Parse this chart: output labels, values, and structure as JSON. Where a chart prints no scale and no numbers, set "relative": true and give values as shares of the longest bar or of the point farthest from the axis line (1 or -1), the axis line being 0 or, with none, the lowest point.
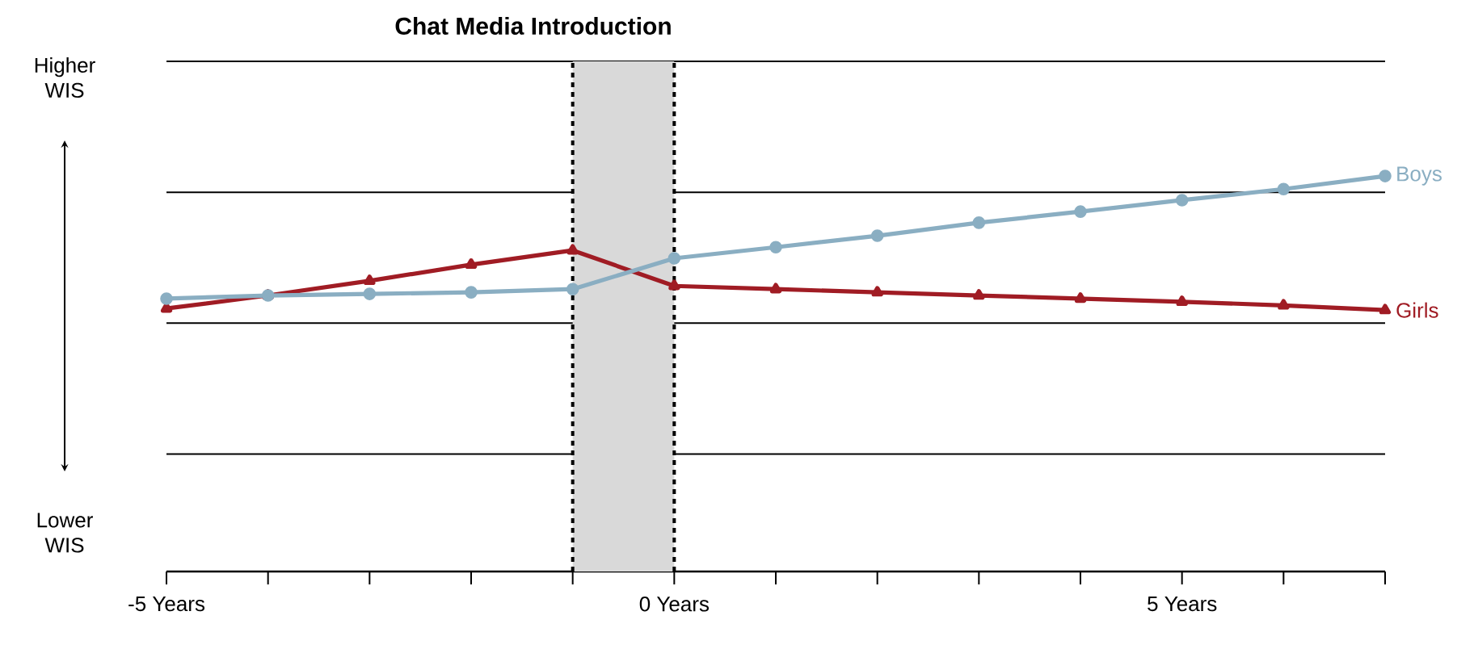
{
  "chart_data": {
    "type": "line",
    "title": "Chat Media Introduction",
    "relative": true,
    "grid": "y",
    "legend": false,
    "x": [
      -5,
      -4,
      -3,
      -2,
      -1,
      0,
      1,
      2,
      3,
      4,
      5,
      6,
      7
    ],
    "xlim": [
      -5,
      7
    ],
    "xticks": [
      {
        "value": -5,
        "label": "-5 Years"
      },
      {
        "value": -4,
        "label": null
      },
      {
        "value": -3,
        "label": null
      },
      {
        "value": -2,
        "label": null
      },
      {
        "value": -1,
        "label": null
      },
      {
        "value": 0,
        "label": "0 Years"
      },
      {
        "value": 1,
        "label": null
      },
      {
        "value": 2,
        "label": null
      },
      {
        "value": 3,
        "label": null
      },
      {
        "value": 4,
        "label": null
      },
      {
        "value": 5,
        "label": "5 Years"
      },
      {
        "value": 6,
        "label": null
      },
      {
        "value": 7,
        "label": null
      }
    ],
    "series": [
      {
        "name": "Boys",
        "color": "#8aaec2",
        "marker": "circle",
        "values": [
          0.69,
          0.698,
          0.702,
          0.706,
          0.714,
          0.792,
          0.82,
          0.849,
          0.882,
          0.91,
          0.939,
          0.967,
          1
        ]
      },
      {
        "name": "Girls",
        "color": "#a01c24",
        "marker": "triangle",
        "values": [
          0.665,
          0.698,
          0.735,
          0.776,
          0.812,
          0.722,
          0.714,
          0.706,
          0.698,
          0.69,
          0.682,
          0.673,
          0.661
        ]
      }
    ],
    "bands": [
      {
        "axis": "x",
        "from": -1,
        "to": 0,
        "color": "#d9d9d9"
      }
    ],
    "ref_lines": [
      {
        "axis": "x",
        "value": -1,
        "line_style": "dashed"
      },
      {
        "axis": "x",
        "value": 0,
        "line_style": "dashed"
      }
    ],
    "annotations": [
      "Higher WIS",
      "Lower WIS"
    ]
  }
}
